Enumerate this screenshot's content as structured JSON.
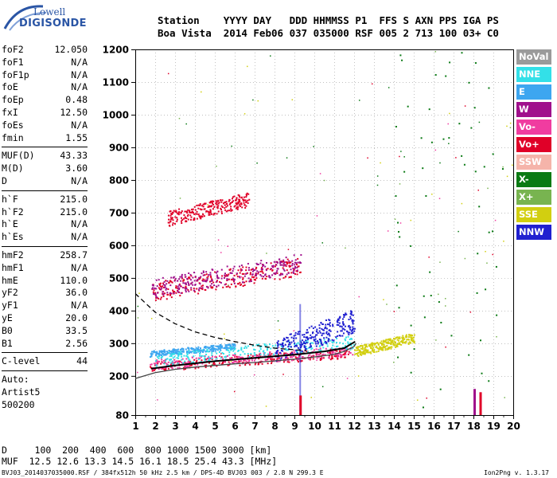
{
  "logo": {
    "line1": "Lowell",
    "line2": "DIGISONDE"
  },
  "header": {
    "row1": "Station    YYYY DAY   DDD HHMMSS P1  FFS S AXN PPS IGA PS",
    "row2": "Boa Vista  2014 Feb06 037 035000 RSF 005 2 713 100 03+ C0"
  },
  "params_group1": [
    {
      "label": "foF2",
      "value": "12.050"
    },
    {
      "label": "foF1",
      "value": "N/A"
    },
    {
      "label": "foF1p",
      "value": "N/A"
    },
    {
      "label": "foE",
      "value": "N/A"
    },
    {
      "label": "foEp",
      "value": "0.48"
    },
    {
      "label": "fxI",
      "value": "12.50"
    },
    {
      "label": "foEs",
      "value": "N/A"
    },
    {
      "label": "fmin",
      "value": "1.55"
    }
  ],
  "params_group2": [
    {
      "label": "MUF(D)",
      "value": "43.33"
    },
    {
      "label": "M(D)",
      "value": "3.60"
    },
    {
      "label": "D",
      "value": "N/A"
    }
  ],
  "params_group3": [
    {
      "label": "h`F",
      "value": "215.0"
    },
    {
      "label": "h`F2",
      "value": "215.0"
    },
    {
      "label": "h`E",
      "value": "N/A"
    },
    {
      "label": "h`Es",
      "value": "N/A"
    }
  ],
  "params_group4": [
    {
      "label": "hmF2",
      "value": "258.7"
    },
    {
      "label": "hmF1",
      "value": "N/A"
    },
    {
      "label": "hmE",
      "value": "110.0"
    },
    {
      "label": "yF2",
      "value": "36.0"
    },
    {
      "label": "yF1",
      "value": "N/A"
    },
    {
      "label": "yE",
      "value": "20.0"
    },
    {
      "label": "B0",
      "value": "33.5"
    },
    {
      "label": "B1",
      "value": "2.56"
    }
  ],
  "params_group5": [
    {
      "label": "C-level",
      "value": "44"
    }
  ],
  "autoscaling": {
    "line1": "Auto:",
    "line2": "Artist5",
    "line3": "500200"
  },
  "legend": [
    {
      "label": "NoVal",
      "color": "#9a9a9a"
    },
    {
      "label": "NNE",
      "color": "#33e0e8"
    },
    {
      "label": "E",
      "color": "#3da6f0"
    },
    {
      "label": "W",
      "color": "#a0108c"
    },
    {
      "label": "Vo-",
      "color": "#f03ca0"
    },
    {
      "label": "Vo+",
      "color": "#e00028"
    },
    {
      "label": "SSW",
      "color": "#f5b4aa"
    },
    {
      "label": "X-",
      "color": "#0a7a14"
    },
    {
      "label": "X+",
      "color": "#78b450"
    },
    {
      "label": "SSE",
      "color": "#d2cf10"
    },
    {
      "label": "NNW",
      "color": "#2020d0"
    }
  ],
  "chart_data": {
    "type": "scatter",
    "xlim": [
      1,
      20
    ],
    "ylim": [
      80,
      1200
    ],
    "x_ticks": [
      1,
      2,
      3,
      4,
      5,
      6,
      7,
      8,
      9,
      10,
      11,
      12,
      13,
      14,
      15,
      16,
      17,
      18,
      19,
      20
    ],
    "y_ticks": [
      80,
      200,
      300,
      400,
      500,
      600,
      700,
      800,
      900,
      1000,
      1100,
      1200
    ],
    "grid": "dotted",
    "curves": [
      {
        "name": "profile",
        "points": [
          [
            1,
            192
          ],
          [
            2,
            210
          ],
          [
            3,
            220
          ],
          [
            4,
            227
          ],
          [
            5,
            232
          ],
          [
            6,
            237
          ],
          [
            7,
            241
          ],
          [
            8,
            246
          ],
          [
            9,
            251
          ],
          [
            10,
            258
          ],
          [
            11,
            266
          ],
          [
            11.5,
            275
          ],
          [
            12,
            290
          ],
          [
            12.1,
            300
          ]
        ]
      },
      {
        "name": "trace",
        "points": [
          [
            1.8,
            222
          ],
          [
            3,
            232
          ],
          [
            5,
            245
          ],
          [
            7,
            255
          ],
          [
            9,
            265
          ],
          [
            10.5,
            275
          ],
          [
            11.5,
            285
          ],
          [
            12.05,
            305
          ]
        ]
      },
      {
        "name": "dashed",
        "points": [
          [
            1,
            452
          ],
          [
            2,
            395
          ],
          [
            3,
            360
          ],
          [
            4,
            335
          ],
          [
            5,
            318
          ],
          [
            6,
            305
          ],
          [
            7,
            294
          ],
          [
            8,
            285
          ],
          [
            9,
            280
          ],
          [
            9.6,
            277
          ]
        ]
      }
    ],
    "point_clusters": [
      {
        "series": "Vo+",
        "x": [
          1.7,
          11.9
        ],
        "y": [
          215,
          285
        ]
      },
      {
        "series": "Vo-",
        "x": [
          1.7,
          11.9
        ],
        "y": [
          220,
          290
        ]
      },
      {
        "series": "E",
        "x": [
          1.7,
          6
        ],
        "y": [
          260,
          300
        ]
      },
      {
        "series": "NNE",
        "x": [
          2,
          12
        ],
        "y": [
          230,
          320
        ]
      },
      {
        "series": "NNW",
        "x": [
          8,
          12
        ],
        "y": [
          240,
          400
        ]
      },
      {
        "series": "SSE",
        "x": [
          12,
          15
        ],
        "y": [
          260,
          330
        ]
      },
      {
        "series": "Vo+",
        "x": [
          1.8,
          9.3
        ],
        "y": [
          430,
          560
        ]
      },
      {
        "series": "W",
        "x": [
          1.8,
          9.3
        ],
        "y": [
          440,
          570
        ]
      },
      {
        "series": "Vo+",
        "x": [
          2.6,
          6.7
        ],
        "y": [
          660,
          760
        ]
      },
      {
        "series": "X-",
        "x": [
          14,
          19.5
        ],
        "y": [
          100,
          1200
        ]
      }
    ]
  },
  "bottom": {
    "d_row": "D     100  200  400  600  800 1000 1500 3000 [km]",
    "muf_row": "MUF  12.5 12.6 13.3 14.5 16.1 18.5 25.4 43.3 [MHz]"
  },
  "footer": {
    "left": "BVJ03_2014037035000.RSF / 384fx512h 50 kHz 2.5 km / DPS-4D BVJ03 003 / 2.8 N 299.3 E",
    "version": "Ion2Png v. 1.3.17"
  }
}
